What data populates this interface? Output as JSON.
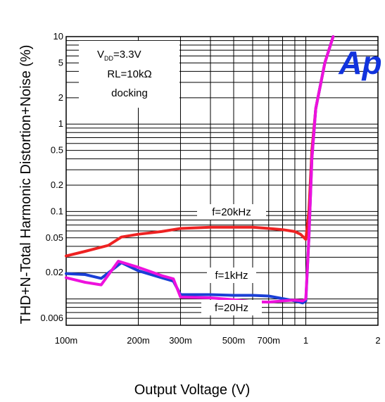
{
  "chart_data": {
    "type": "line",
    "ylabel": "THD+N-Total Harmonic Distortion+Noise (%)",
    "xlabel": "Output Voltage (V)",
    "xscale": "log",
    "yscale": "log",
    "xlim": [
      0.1,
      2
    ],
    "ylim": [
      0.005,
      10
    ],
    "grid": true,
    "x_tick_labels": [
      "100m",
      "200m",
      "300m",
      "500m",
      "700m",
      "1",
      "2"
    ],
    "x_tick_values": [
      0.1,
      0.2,
      0.3,
      0.5,
      0.7,
      1,
      2
    ],
    "y_tick_labels": [
      "10",
      "5",
      "2",
      "1",
      "0.5",
      "0.2",
      "0.1",
      "0.05",
      "0.02",
      "0.006"
    ],
    "y_tick_values": [
      10,
      5,
      2,
      1,
      0.5,
      0.2,
      0.1,
      0.05,
      0.02,
      0.006
    ],
    "conditions": {
      "vdd_prefix": "V",
      "vdd_sub": "DD",
      "vdd_value": "=3.3V",
      "rl": "RL=10kΩ",
      "mode": "docking"
    },
    "logo_text": "Ap",
    "series": [
      {
        "name": "f=20kHz",
        "color": "#ee2222",
        "x": [
          0.1,
          0.12,
          0.15,
          0.17,
          0.2,
          0.25,
          0.3,
          0.4,
          0.5,
          0.6,
          0.7,
          0.8,
          0.9,
          0.95,
          1.0,
          1.03,
          1.06,
          1.1,
          1.2,
          1.3
        ],
        "values": [
          0.031,
          0.035,
          0.041,
          0.051,
          0.055,
          0.059,
          0.064,
          0.066,
          0.066,
          0.066,
          0.064,
          0.062,
          0.059,
          0.055,
          0.048,
          0.1,
          0.5,
          1.5,
          5,
          10
        ]
      },
      {
        "name": "f=1kHz",
        "color": "#1a3fd6",
        "x": [
          0.1,
          0.12,
          0.14,
          0.17,
          0.2,
          0.25,
          0.28,
          0.3,
          0.4,
          0.5,
          0.6,
          0.7,
          0.8,
          0.9,
          0.97,
          1.0,
          1.03,
          1.06,
          1.1,
          1.2,
          1.3
        ],
        "values": [
          0.0195,
          0.019,
          0.0172,
          0.026,
          0.021,
          0.0175,
          0.016,
          0.0112,
          0.0112,
          0.011,
          0.011,
          0.0108,
          0.0101,
          0.0095,
          0.009,
          0.0095,
          0.05,
          0.4,
          1.5,
          5,
          10
        ]
      },
      {
        "name": "f=20Hz",
        "color": "#ee11dd",
        "x": [
          0.1,
          0.12,
          0.14,
          0.165,
          0.2,
          0.25,
          0.28,
          0.3,
          0.4,
          0.5,
          0.6,
          0.7,
          0.8,
          0.9,
          0.97,
          1.0,
          1.03,
          1.06,
          1.1,
          1.2,
          1.3
        ],
        "values": [
          0.0175,
          0.0155,
          0.0145,
          0.027,
          0.023,
          0.0185,
          0.017,
          0.0105,
          0.0103,
          0.0098,
          0.0093,
          0.0092,
          0.0095,
          0.0097,
          0.0095,
          0.01,
          0.05,
          0.4,
          1.5,
          5,
          10
        ]
      }
    ]
  }
}
